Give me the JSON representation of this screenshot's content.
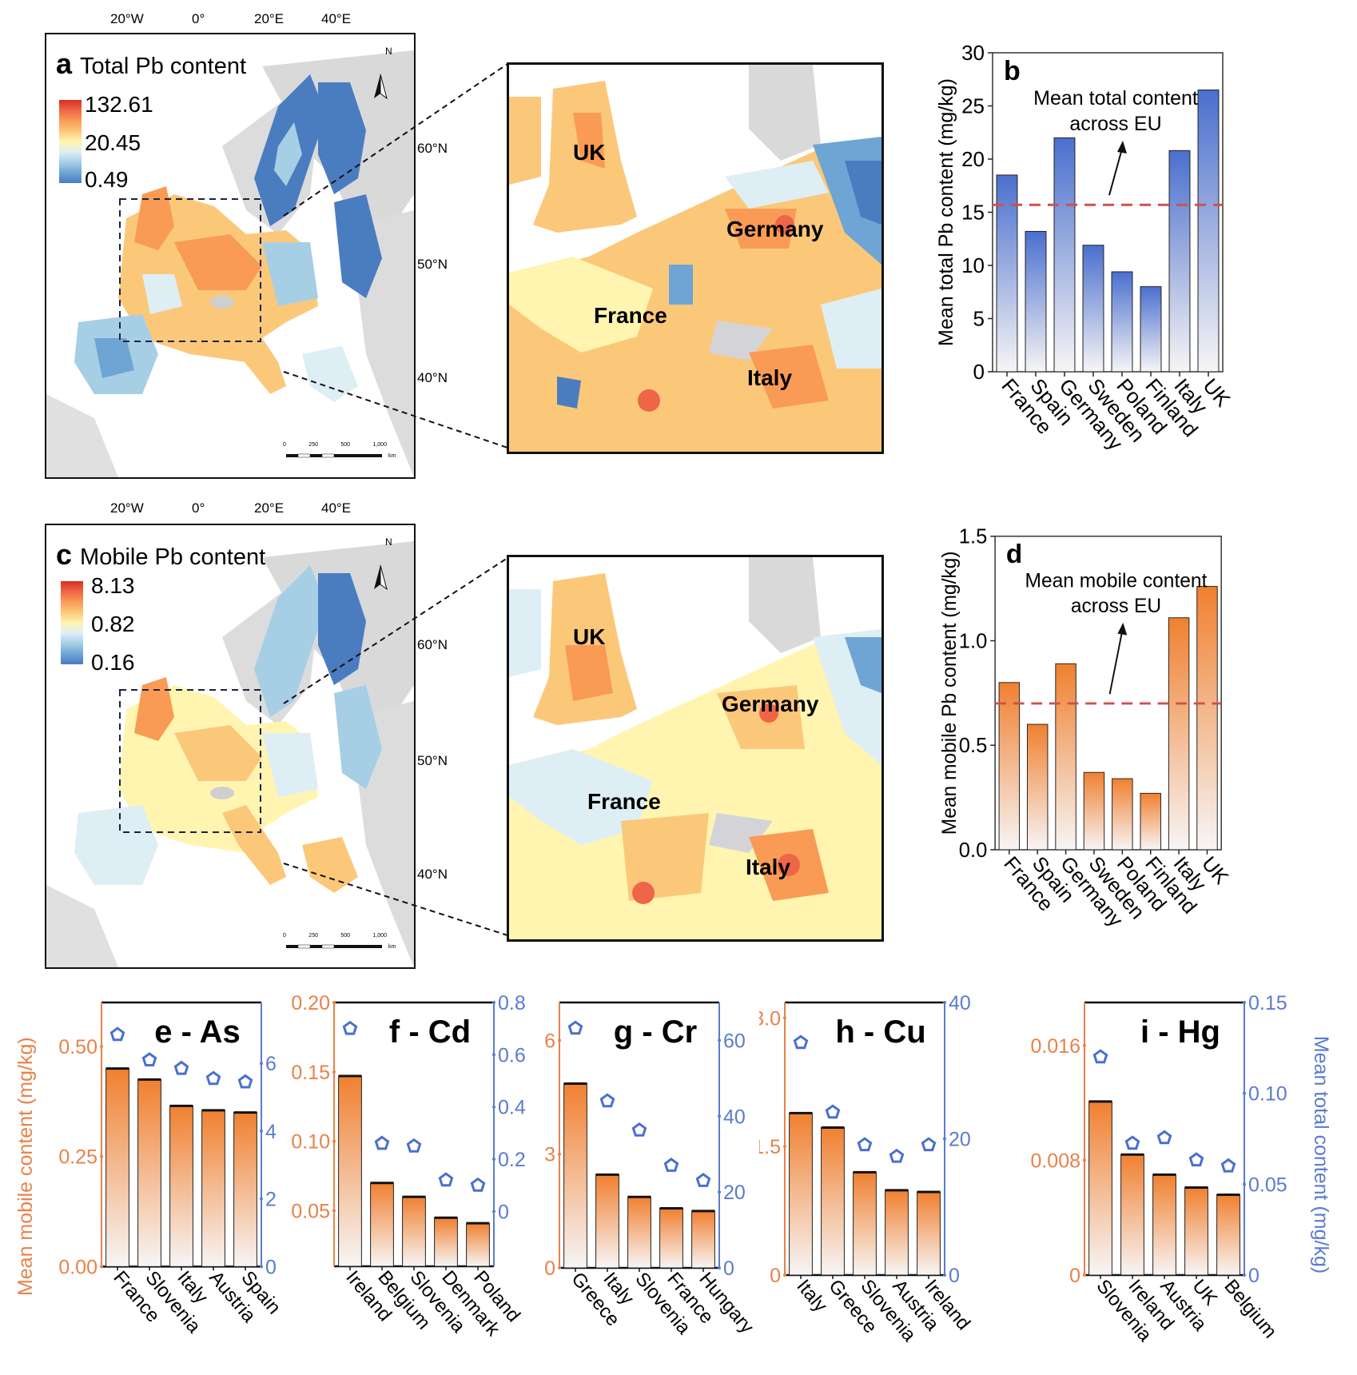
{
  "maps": [
    {
      "panel": "a",
      "title": "Total Pb content",
      "legend": {
        "max": "132.61",
        "mid": "20.45",
        "min": "0.49"
      },
      "lon_ticks": [
        "20°W",
        "0°",
        "20°E",
        "40°E"
      ],
      "lat_ticks": [
        "60°N",
        "50°N",
        "40°N"
      ],
      "north_label": "N",
      "scalebar": {
        "ticks": [
          "0",
          "250",
          "500",
          "1,000"
        ],
        "unit": "km"
      },
      "inset_labels": [
        "UK",
        "Germany",
        "France",
        "Italy"
      ]
    },
    {
      "panel": "c",
      "title": "Mobile Pb content",
      "legend": {
        "max": "8.13",
        "mid": "0.82",
        "min": "0.16"
      },
      "lon_ticks": [
        "20°W",
        "0°",
        "20°E",
        "40°E"
      ],
      "lat_ticks": [
        "60°N",
        "50°N",
        "40°N"
      ],
      "north_label": "N",
      "scalebar": {
        "ticks": [
          "0",
          "250",
          "500",
          "1,000"
        ],
        "unit": "km"
      },
      "inset_labels": [
        "UK",
        "Germany",
        "France",
        "Italy"
      ]
    }
  ],
  "colors": {
    "legend_ramp": [
      "#d7301f",
      "#ef6548",
      "#f99b55",
      "#fbc87a",
      "#fff5b0",
      "#deeef5",
      "#a6cfe6",
      "#6ea5d4",
      "#4a7cc0"
    ],
    "blue_bar": "#4a6fce",
    "orange_bar": "#f08030",
    "mean_line": "#d0504a",
    "orange_axis": "#e8824a",
    "blue_axis": "#5b7bd0"
  },
  "chart_data": [
    {
      "panel": "b",
      "type": "bar",
      "categories": [
        "France",
        "Spain",
        "Germany",
        "Sweden",
        "Poland",
        "Finland",
        "Italy",
        "UK"
      ],
      "values": [
        18.5,
        13.2,
        22.0,
        11.9,
        9.4,
        8.0,
        20.8,
        26.5
      ],
      "ylabel": "Mean total Pb content (mg/kg)",
      "yticks": [
        "0",
        "5",
        "10",
        "15",
        "20",
        "25",
        "30"
      ],
      "ylim": [
        0,
        30
      ],
      "reference_line": {
        "value": 15.7,
        "style": "dashed"
      },
      "annotation": [
        "Mean total content",
        "across EU"
      ],
      "panel_label": "b"
    },
    {
      "panel": "d",
      "type": "bar",
      "categories": [
        "France",
        "Spain",
        "Germany",
        "Sweden",
        "Poland",
        "Finland",
        "Italy",
        "UK"
      ],
      "values": [
        0.8,
        0.6,
        0.89,
        0.37,
        0.34,
        0.27,
        1.11,
        1.26
      ],
      "ylabel": "Mean mobile Pb content (mg/kg)",
      "yticks": [
        "0.0",
        "0.5",
        "1.0",
        "1.5"
      ],
      "ylim": [
        0,
        1.5
      ],
      "reference_line": {
        "value": 0.7,
        "style": "dashed"
      },
      "annotation": [
        "Mean mobile content",
        "across EU"
      ],
      "panel_label": "d"
    },
    {
      "panel": "e",
      "type": "bar",
      "title": "e - As",
      "categories": [
        "France",
        "Slovenia",
        "Italy",
        "Austria",
        "Spain"
      ],
      "series": [
        {
          "name": "Mean mobile content",
          "axis": "left",
          "values": [
            0.45,
            0.425,
            0.365,
            0.355,
            0.35
          ]
        },
        {
          "name": "Mean total content",
          "axis": "right",
          "marker": "pentagon",
          "values": [
            6.85,
            6.1,
            5.85,
            5.55,
            5.45
          ]
        }
      ],
      "left_ylim": [
        0,
        0.6
      ],
      "left_yticks": [
        "0.00",
        "0.25",
        "0.50"
      ],
      "left_tick_values": [
        0,
        0.25,
        0.5
      ],
      "right_ylim": [
        0,
        7.8
      ],
      "right_yticks": [
        "0",
        "2",
        "4",
        "6"
      ],
      "right_tick_values": [
        0,
        2,
        4,
        6
      ],
      "ylabel_left": "Mean mobile content (mg/kg)"
    },
    {
      "panel": "f",
      "type": "bar",
      "title": "f - Cd",
      "categories": [
        "Ireland",
        "Belgium",
        "Slovenia",
        "Denmark",
        "Poland"
      ],
      "series": [
        {
          "name": "Mean mobile content",
          "axis": "left",
          "values": [
            0.147,
            0.07,
            0.06,
            0.045,
            0.041
          ]
        },
        {
          "name": "Mean total content",
          "axis": "right",
          "marker": "pentagon",
          "values": [
            0.7,
            0.26,
            0.25,
            0.12,
            0.1
          ]
        }
      ],
      "left_ylim": [
        0.01,
        0.2
      ],
      "left_yticks": [
        "0.05",
        "0.10",
        "0.15",
        "0.20"
      ],
      "left_tick_values": [
        0.05,
        0.1,
        0.15,
        0.2
      ],
      "right_ylim": [
        -0.21,
        0.8
      ],
      "right_yticks": [
        "0",
        "0.2",
        "0.4",
        "0.6",
        "0.8"
      ],
      "right_tick_values": [
        0,
        0.2,
        0.4,
        0.6,
        0.8
      ]
    },
    {
      "panel": "g",
      "type": "bar",
      "title": "g - Cr",
      "categories": [
        "Greece",
        "Italy",
        "Slovenia",
        "France",
        "Hungary"
      ],
      "series": [
        {
          "name": "Mean mobile content",
          "axis": "left",
          "values": [
            4.86,
            2.46,
            1.87,
            1.57,
            1.5
          ]
        },
        {
          "name": "Mean total content",
          "axis": "right",
          "marker": "pentagon",
          "values": [
            63.2,
            44.0,
            36.3,
            27.0,
            23.0
          ]
        }
      ],
      "left_ylim": [
        0,
        7.0
      ],
      "left_yticks": [
        "0",
        "3",
        "6"
      ],
      "left_tick_values": [
        0,
        3,
        6
      ],
      "right_ylim": [
        0,
        70
      ],
      "right_yticks": [
        "0",
        "20",
        "40",
        "60"
      ],
      "right_tick_values": [
        0,
        20,
        40,
        60
      ]
    },
    {
      "panel": "h",
      "type": "bar",
      "title": "h - Cu",
      "categories": [
        "Italy",
        "Greece",
        "Slovenia",
        "Austria",
        "Ireland"
      ],
      "series": [
        {
          "name": "Mean mobile content",
          "axis": "left",
          "values": [
            1.89,
            1.72,
            1.2,
            0.99,
            0.97
          ]
        },
        {
          "name": "Mean total content",
          "axis": "right",
          "marker": "pentagon",
          "values": [
            34.1,
            23.9,
            19.1,
            17.4,
            19.1
          ]
        }
      ],
      "left_ylim": [
        0,
        3.18
      ],
      "left_yticks": [
        "0",
        "1.5",
        "3.0"
      ],
      "left_tick_values": [
        0,
        1.5,
        3.0
      ],
      "right_ylim": [
        0,
        40
      ],
      "right_yticks": [
        "0",
        "20",
        "40"
      ],
      "right_tick_values": [
        0,
        20,
        40
      ]
    },
    {
      "panel": "i",
      "type": "bar",
      "title": "i - Hg",
      "categories": [
        "Slovenia",
        "Ireland",
        "Austria",
        "UK",
        "Belgium"
      ],
      "series": [
        {
          "name": "Mean mobile content",
          "axis": "left",
          "values": [
            0.0121,
            0.0084,
            0.007,
            0.0061,
            0.0056
          ]
        },
        {
          "name": "Mean total content",
          "axis": "right",
          "marker": "pentagon",
          "values": [
            0.12,
            0.0725,
            0.0755,
            0.0633,
            0.06
          ]
        }
      ],
      "left_ylim": [
        0,
        0.019
      ],
      "left_yticks": [
        "0",
        "0.008",
        "0.016"
      ],
      "left_tick_values": [
        0,
        0.008,
        0.016
      ],
      "right_ylim": [
        0,
        0.15
      ],
      "right_yticks": [
        "0",
        "0.05",
        "0.10",
        "0.15"
      ],
      "right_tick_values": [
        0,
        0.05,
        0.1,
        0.15
      ],
      "ylabel_right": "Mean total content (mg/kg)"
    }
  ]
}
